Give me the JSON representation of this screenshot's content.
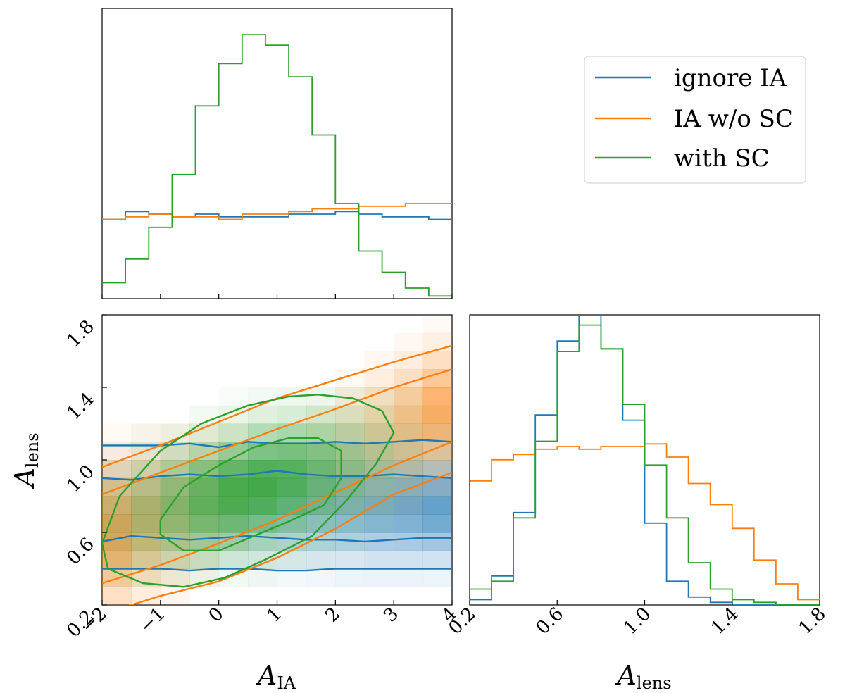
{
  "chart_data": [
    {
      "type": "histogram",
      "panel": "top-left marginal",
      "xlim": [
        -2,
        4
      ],
      "bin_edges": [
        -2.0,
        -1.6,
        -1.2,
        -0.8,
        -0.4,
        0.0,
        0.4,
        0.8,
        1.2,
        1.6,
        2.0,
        2.4,
        2.8,
        3.2,
        3.6,
        4.0
      ],
      "series": [
        {
          "name": "ignore IA",
          "color": "#1f77b4",
          "values": [
            0.3,
            0.33,
            0.32,
            0.31,
            0.32,
            0.31,
            0.31,
            0.31,
            0.32,
            0.32,
            0.33,
            0.32,
            0.31,
            0.31,
            0.3
          ]
        },
        {
          "name": "IA w/o SC",
          "color": "#ff7f0e",
          "values": [
            0.3,
            0.31,
            0.32,
            0.31,
            0.31,
            0.3,
            0.32,
            0.32,
            0.33,
            0.34,
            0.34,
            0.35,
            0.35,
            0.36,
            0.36
          ]
        },
        {
          "name": "with SC",
          "color": "#2ca02c",
          "values": [
            0.06,
            0.15,
            0.27,
            0.47,
            0.73,
            0.89,
            1.0,
            0.96,
            0.84,
            0.62,
            0.36,
            0.18,
            0.1,
            0.04,
            0.01
          ]
        }
      ]
    },
    {
      "type": "contour",
      "panel": "bottom-left joint",
      "xlabel": "A_IA",
      "ylabel": "A_lens",
      "xlim": [
        -2,
        4
      ],
      "ylim": [
        0.2,
        1.8
      ],
      "xticks": [
        "−2",
        "−1",
        "0",
        "1",
        "2",
        "3",
        "4"
      ],
      "yticks": [
        "0.2",
        "0.6",
        "1.0",
        "1.4",
        "1.8"
      ],
      "series": [
        {
          "name": "ignore IA",
          "color": "#1f77b4",
          "contours": [
            {
              "x": [
                -2,
                -1.5,
                -1,
                -0.5,
                0,
                0.5,
                1,
                1.5,
                2,
                2.5,
                3,
                3.5,
                4
              ],
              "y": [
                0.4,
                0.4,
                0.4,
                0.39,
                0.4,
                0.4,
                0.39,
                0.39,
                0.4,
                0.4,
                0.4,
                0.4,
                0.4
              ]
            },
            {
              "x": [
                -2,
                -1.5,
                -1,
                -0.5,
                0,
                0.5,
                1,
                1.5,
                2,
                2.5,
                3,
                3.5,
                4
              ],
              "y": [
                0.55,
                0.58,
                0.57,
                0.56,
                0.57,
                0.58,
                0.57,
                0.56,
                0.56,
                0.55,
                0.56,
                0.57,
                0.57
              ]
            },
            {
              "x": [
                -2,
                -1.5,
                -1,
                -0.5,
                0,
                0.5,
                1,
                1.5,
                2,
                2.5,
                3,
                3.5,
                4
              ],
              "y": [
                0.9,
                0.89,
                0.91,
                0.92,
                0.91,
                0.92,
                0.94,
                0.92,
                0.91,
                0.91,
                0.92,
                0.91,
                0.9
              ]
            },
            {
              "x": [
                -2,
                -1.5,
                -1,
                -0.5,
                0,
                0.5,
                1,
                1.5,
                2,
                2.5,
                3,
                3.5,
                4
              ],
              "y": [
                1.08,
                1.08,
                1.08,
                1.09,
                1.07,
                1.1,
                1.09,
                1.09,
                1.1,
                1.09,
                1.1,
                1.11,
                1.1
              ]
            }
          ]
        },
        {
          "name": "IA w/o SC",
          "color": "#ff7f0e",
          "contours": [
            {
              "x": [
                -2,
                -1,
                0,
                1,
                2,
                3,
                4
              ],
              "y": [
                0.15,
                0.25,
                0.33,
                0.46,
                0.62,
                0.81,
                0.93
              ]
            },
            {
              "x": [
                -2,
                -1,
                0,
                1,
                2,
                3,
                4
              ],
              "y": [
                0.32,
                0.42,
                0.54,
                0.67,
                0.82,
                0.97,
                1.1
              ]
            },
            {
              "x": [
                -2,
                -1,
                0,
                1,
                2,
                3,
                4
              ],
              "y": [
                0.81,
                0.93,
                1.05,
                1.17,
                1.28,
                1.4,
                1.5
              ]
            },
            {
              "x": [
                -2,
                -1,
                0,
                1,
                2,
                3,
                4
              ],
              "y": [
                0.96,
                1.08,
                1.21,
                1.34,
                1.44,
                1.54,
                1.63
              ]
            }
          ]
        },
        {
          "name": "with SC",
          "color": "#2ca02c",
          "contours": [
            {
              "x": [
                -1.0,
                -0.6,
                0.0,
                0.6,
                1.2,
                1.7,
                2.1,
                2.1,
                1.8,
                1.2,
                0.6,
                0.0,
                -0.6,
                -1.0,
                -1.0
              ],
              "y": [
                0.67,
                0.85,
                0.97,
                1.07,
                1.12,
                1.12,
                1.05,
                0.9,
                0.75,
                0.66,
                0.58,
                0.5,
                0.5,
                0.59,
                0.67
              ]
            },
            {
              "x": [
                -2.0,
                -1.7,
                -1.0,
                -0.3,
                0.5,
                1.2,
                1.7,
                2.3,
                2.8,
                3.0,
                2.7,
                2.2,
                1.6,
                0.8,
                0.1,
                -0.6,
                -1.3,
                -1.9,
                -2.0
              ],
              "y": [
                0.54,
                0.8,
                1.05,
                1.2,
                1.3,
                1.35,
                1.36,
                1.34,
                1.27,
                1.15,
                0.98,
                0.78,
                0.58,
                0.45,
                0.35,
                0.3,
                0.32,
                0.4,
                0.54
              ]
            }
          ]
        }
      ]
    },
    {
      "type": "histogram",
      "panel": "bottom-right marginal",
      "xlabel": "A_lens",
      "xlim": [
        0.2,
        1.8
      ],
      "xticks": [
        "0.2",
        "0.6",
        "1.0",
        "1.4",
        "1.8"
      ],
      "bin_edges": [
        0.2,
        0.3,
        0.4,
        0.5,
        0.6,
        0.7,
        0.8,
        0.9,
        1.0,
        1.1,
        1.2,
        1.3,
        1.4,
        1.5,
        1.6,
        1.7,
        1.8
      ],
      "series": [
        {
          "name": "ignore IA",
          "color": "#1f77b4",
          "values": [
            0.02,
            0.11,
            0.35,
            0.72,
            1.0,
            1.11,
            0.97,
            0.7,
            0.31,
            0.09,
            0.03,
            0.01,
            0.0,
            0.0,
            0.0,
            0.0
          ]
        },
        {
          "name": "IA w/o SC",
          "color": "#ff7f0e",
          "values": [
            0.47,
            0.55,
            0.57,
            0.59,
            0.6,
            0.59,
            0.6,
            0.6,
            0.61,
            0.56,
            0.46,
            0.38,
            0.29,
            0.17,
            0.08,
            0.02
          ]
        },
        {
          "name": "with SC",
          "color": "#2ca02c",
          "values": [
            0.06,
            0.09,
            0.33,
            0.62,
            0.96,
            1.06,
            0.97,
            0.76,
            0.53,
            0.33,
            0.16,
            0.06,
            0.02,
            0.01,
            0.0,
            0.0
          ]
        }
      ]
    }
  ],
  "legend": {
    "placement": "top-right",
    "items": [
      {
        "label": "ignore IA",
        "color": "#1f77b4"
      },
      {
        "label": "IA w/o SC",
        "color": "#ff7f0e"
      },
      {
        "label": "with SC",
        "color": "#2ca02c"
      }
    ]
  },
  "labels": {
    "x_main": "A",
    "x_sub": "IA",
    "lens_main": "A",
    "lens_sub": "lens"
  }
}
